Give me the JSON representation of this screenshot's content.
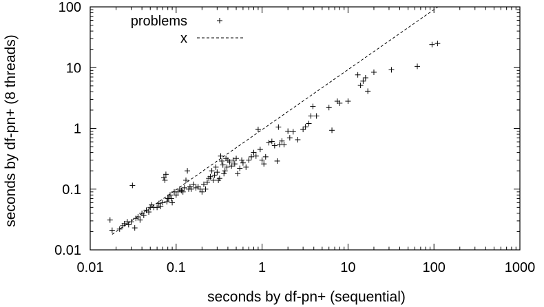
{
  "chart_data": {
    "type": "scatter",
    "title": "",
    "xlabel": "seconds by df-pn+ (sequential)",
    "ylabel": "seconds by df-pn+ (8 threads)",
    "xscale": "log",
    "yscale": "log",
    "xlim": [
      0.01,
      1000
    ],
    "ylim": [
      0.01,
      100
    ],
    "xticks": [
      {
        "value": 0.01,
        "label": "0.01"
      },
      {
        "value": 0.1,
        "label": "0.1"
      },
      {
        "value": 1,
        "label": "1"
      },
      {
        "value": 10,
        "label": "10"
      },
      {
        "value": 100,
        "label": "100"
      },
      {
        "value": 1000,
        "label": "1000"
      }
    ],
    "yticks": [
      {
        "value": 0.01,
        "label": "0.01"
      },
      {
        "value": 0.1,
        "label": "0.1"
      },
      {
        "value": 1,
        "label": "1"
      },
      {
        "value": 10,
        "label": "10"
      },
      {
        "value": 100,
        "label": "100"
      }
    ],
    "legend_position": "top-left",
    "series": [
      {
        "name": "problems",
        "marker": "+",
        "points": [
          [
            0.017,
            0.031
          ],
          [
            0.018,
            0.021
          ],
          [
            0.022,
            0.022
          ],
          [
            0.024,
            0.025
          ],
          [
            0.025,
            0.027
          ],
          [
            0.027,
            0.029
          ],
          [
            0.028,
            0.026
          ],
          [
            0.03,
            0.029
          ],
          [
            0.031,
            0.115
          ],
          [
            0.033,
            0.023
          ],
          [
            0.034,
            0.033
          ],
          [
            0.036,
            0.035
          ],
          [
            0.038,
            0.031
          ],
          [
            0.04,
            0.04
          ],
          [
            0.042,
            0.037
          ],
          [
            0.045,
            0.045
          ],
          [
            0.048,
            0.042
          ],
          [
            0.05,
            0.05
          ],
          [
            0.052,
            0.055
          ],
          [
            0.055,
            0.05
          ],
          [
            0.06,
            0.05
          ],
          [
            0.063,
            0.058
          ],
          [
            0.066,
            0.052
          ],
          [
            0.07,
            0.06
          ],
          [
            0.072,
            0.155
          ],
          [
            0.074,
            0.14
          ],
          [
            0.076,
            0.175
          ],
          [
            0.078,
            0.062
          ],
          [
            0.08,
            0.07
          ],
          [
            0.082,
            0.07
          ],
          [
            0.085,
            0.08
          ],
          [
            0.088,
            0.07
          ],
          [
            0.09,
            0.06
          ],
          [
            0.095,
            0.09
          ],
          [
            0.1,
            0.08
          ],
          [
            0.105,
            0.09
          ],
          [
            0.11,
            0.1
          ],
          [
            0.115,
            0.095
          ],
          [
            0.12,
            0.09
          ],
          [
            0.125,
            0.105
          ],
          [
            0.13,
            0.14
          ],
          [
            0.135,
            0.2
          ],
          [
            0.14,
            0.1
          ],
          [
            0.145,
            0.11
          ],
          [
            0.15,
            0.1
          ],
          [
            0.16,
            0.12
          ],
          [
            0.17,
            0.105
          ],
          [
            0.18,
            0.11
          ],
          [
            0.19,
            0.1
          ],
          [
            0.2,
            0.09
          ],
          [
            0.21,
            0.12
          ],
          [
            0.22,
            0.1
          ],
          [
            0.23,
            0.13
          ],
          [
            0.24,
            0.15
          ],
          [
            0.25,
            0.16
          ],
          [
            0.26,
            0.2
          ],
          [
            0.27,
            0.14
          ],
          [
            0.28,
            0.17
          ],
          [
            0.29,
            0.23
          ],
          [
            0.3,
            0.19
          ],
          [
            0.31,
            0.14
          ],
          [
            0.32,
            0.15
          ],
          [
            0.33,
            0.35
          ],
          [
            0.34,
            0.29
          ],
          [
            0.35,
            0.25
          ],
          [
            0.36,
            0.18
          ],
          [
            0.37,
            0.2
          ],
          [
            0.38,
            0.32
          ],
          [
            0.39,
            0.23
          ],
          [
            0.4,
            0.3
          ],
          [
            0.42,
            0.28
          ],
          [
            0.44,
            0.24
          ],
          [
            0.46,
            0.3
          ],
          [
            0.48,
            0.26
          ],
          [
            0.5,
            0.32
          ],
          [
            0.52,
            0.18
          ],
          [
            0.55,
            0.22
          ],
          [
            0.58,
            0.3
          ],
          [
            0.6,
            0.27
          ],
          [
            0.65,
            0.23
          ],
          [
            0.7,
            0.3
          ],
          [
            0.75,
            0.34
          ],
          [
            0.8,
            0.4
          ],
          [
            0.85,
            0.35
          ],
          [
            0.9,
            0.96
          ],
          [
            0.95,
            0.45
          ],
          [
            1.0,
            0.3
          ],
          [
            1.05,
            0.26
          ],
          [
            1.1,
            0.34
          ],
          [
            1.2,
            0.58
          ],
          [
            1.3,
            0.61
          ],
          [
            1.4,
            0.52
          ],
          [
            1.5,
            0.29
          ],
          [
            1.55,
            1.05
          ],
          [
            1.6,
            0.54
          ],
          [
            1.7,
            0.62
          ],
          [
            1.8,
            0.54
          ],
          [
            2.0,
            0.9
          ],
          [
            2.1,
            0.7
          ],
          [
            2.3,
            0.88
          ],
          [
            2.6,
            0.65
          ],
          [
            3.0,
            0.96
          ],
          [
            3.2,
            1.06
          ],
          [
            3.5,
            1.2
          ],
          [
            3.7,
            1.6
          ],
          [
            3.9,
            2.3
          ],
          [
            4.3,
            1.6
          ],
          [
            6.0,
            2.2
          ],
          [
            6.5,
            0.93
          ],
          [
            7.5,
            2.8
          ],
          [
            8.0,
            2.6
          ],
          [
            10.0,
            2.8
          ],
          [
            13.0,
            7.6
          ],
          [
            14.0,
            5.1
          ],
          [
            15.0,
            6.0
          ],
          [
            16.0,
            6.8
          ],
          [
            17.0,
            4.1
          ],
          [
            20.0,
            8.4
          ],
          [
            32.0,
            9.2
          ],
          [
            64.0,
            10.5
          ],
          [
            95.0,
            24.0
          ],
          [
            110.0,
            25.0
          ]
        ]
      },
      {
        "name": "x",
        "style": "dashed",
        "line": [
          [
            0.018,
            0.018
          ],
          [
            111,
            100
          ]
        ]
      }
    ]
  }
}
